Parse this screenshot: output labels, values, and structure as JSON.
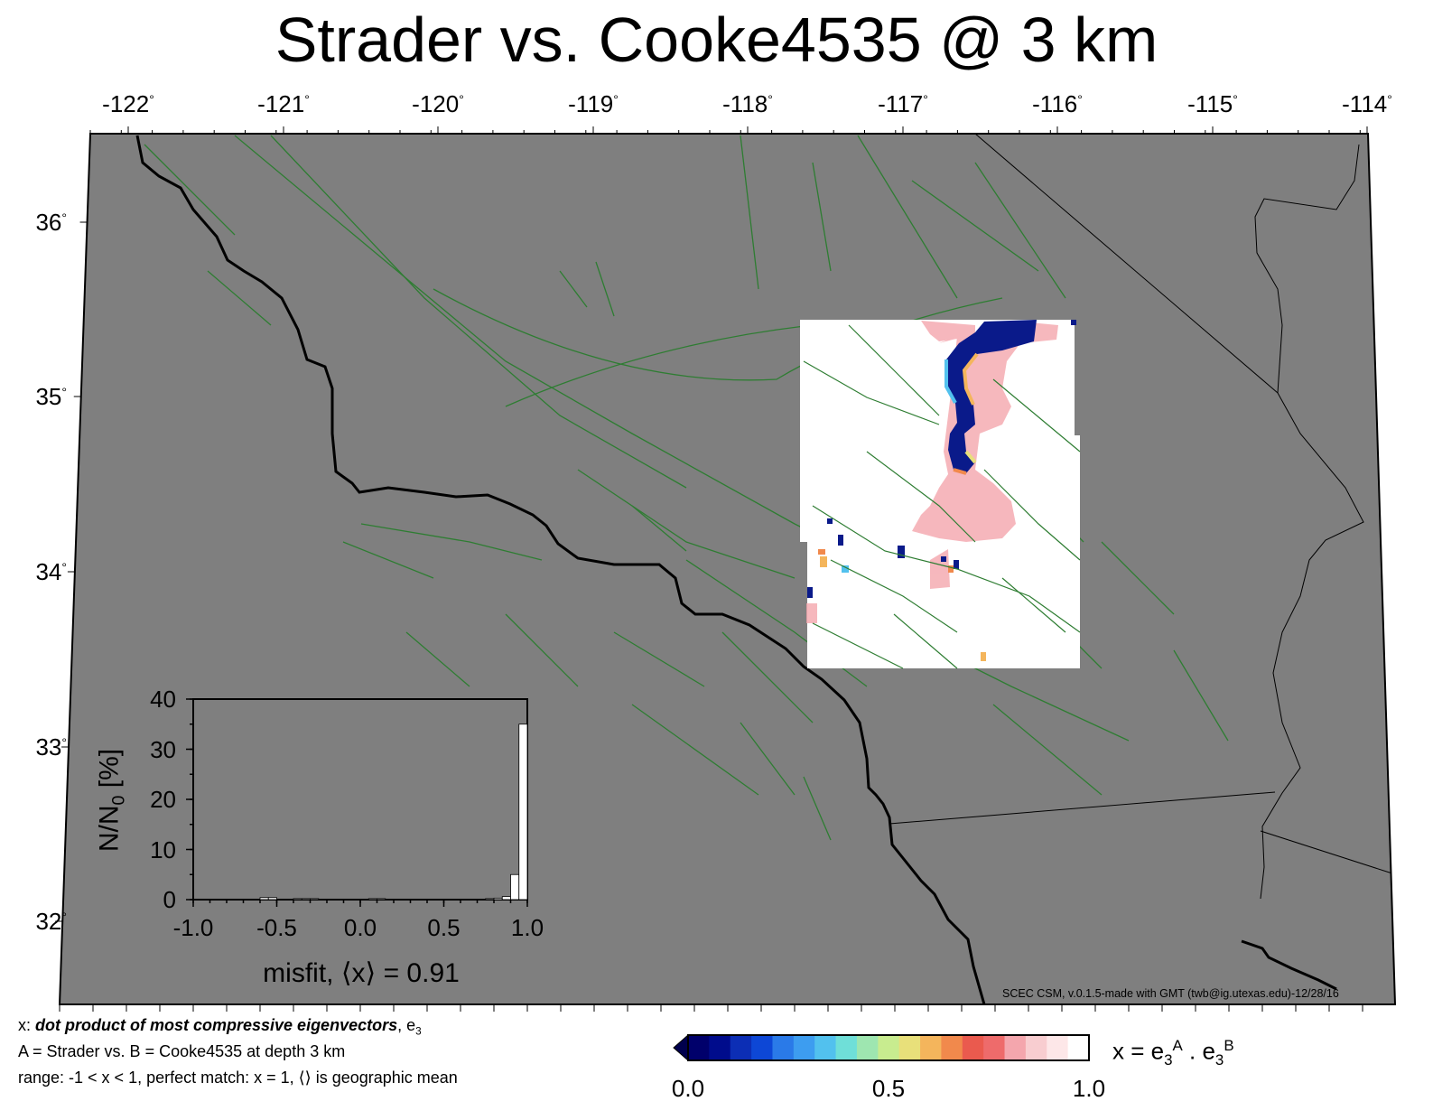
{
  "title": "Strader vs. Cooke4535 @ 3 km",
  "colors": {
    "background": "#7f7f7f",
    "faults": "#2e7d32",
    "coast": "#000000",
    "misfit_field": "#ffffff",
    "misfit_pink": "#f4a6ad",
    "misfit_blue": "#0a1a8a"
  },
  "map": {
    "lon_ticks": [
      "-122°",
      "-121°",
      "-120°",
      "-119°",
      "-118°",
      "-117°",
      "-116°",
      "-115°",
      "-114°"
    ],
    "lat_ticks": [
      "36°",
      "35°",
      "34°",
      "33°",
      "32°"
    ]
  },
  "histogram": {
    "xlabel": "misfit, ⟨x⟩ = 0.91",
    "ylabel": "N/N0 [%]",
    "x_ticks": [
      "-1.0",
      "-0.5",
      "0.0",
      "0.5",
      "1.0"
    ],
    "y_ticks": [
      "0",
      "10",
      "20",
      "30",
      "40"
    ]
  },
  "chart_data": {
    "type": "bar",
    "xlim": [
      -1.0,
      1.0
    ],
    "ylim": [
      0,
      40
    ],
    "bin_width": 0.05,
    "bins": [
      {
        "x0": -0.6,
        "x1": -0.55,
        "y": 0.4
      },
      {
        "x0": -0.55,
        "x1": -0.5,
        "y": 0.4
      },
      {
        "x0": -0.4,
        "x1": -0.35,
        "y": 0.2
      },
      {
        "x0": -0.35,
        "x1": -0.3,
        "y": 0.2
      },
      {
        "x0": -0.3,
        "x1": -0.25,
        "y": 0.2
      },
      {
        "x0": -0.2,
        "x1": -0.15,
        "y": 0.1
      },
      {
        "x0": -0.15,
        "x1": -0.1,
        "y": 0.1
      },
      {
        "x0": 0.05,
        "x1": 0.1,
        "y": 0.2
      },
      {
        "x0": 0.1,
        "x1": 0.15,
        "y": 0.2
      },
      {
        "x0": 0.7,
        "x1": 0.75,
        "y": 0.1
      },
      {
        "x0": 0.75,
        "x1": 0.8,
        "y": 0.2
      },
      {
        "x0": 0.8,
        "x1": 0.85,
        "y": 0.3
      },
      {
        "x0": 0.85,
        "x1": 0.9,
        "y": 0.6
      },
      {
        "x0": 0.9,
        "x1": 0.95,
        "y": 5.0
      },
      {
        "x0": 0.95,
        "x1": 1.0,
        "y": 35.0
      }
    ]
  },
  "colorbar": {
    "label_main": "x = e",
    "label_sub1": "3",
    "label_sup1": "A",
    "label_mid": " . e",
    "label_sub2": "3",
    "label_sup2": "B",
    "ticks": [
      "0.0",
      "0.5",
      "1.0"
    ],
    "colors": [
      "#00006b",
      "#000c8c",
      "#0c2eb5",
      "#0d47d6",
      "#2a7ae8",
      "#3d9df0",
      "#52c1ee",
      "#6fdfd8",
      "#9ee6b0",
      "#c8ec8f",
      "#e8e07a",
      "#f4b55c",
      "#f1894c",
      "#ea5a4e",
      "#ee6b6b",
      "#f4a6ad",
      "#f8cdd0",
      "#fde7e8",
      "#ffffff"
    ]
  },
  "credit": "SCEC CSM, v.0.1.5-made with GMT (twb@ig.utexas.edu)-12/28/16",
  "notes": {
    "line1_a": "x: ",
    "line1_b": "dot product of most compressive eigenvectors",
    "line1_c": ", e",
    "line1_sub": "3",
    "line2": "A = Strader vs.  B = Cooke4535 at depth 3 km",
    "line3": "range: -1 < x < 1, perfect match: x = 1, ⟨⟩ is geographic mean"
  }
}
